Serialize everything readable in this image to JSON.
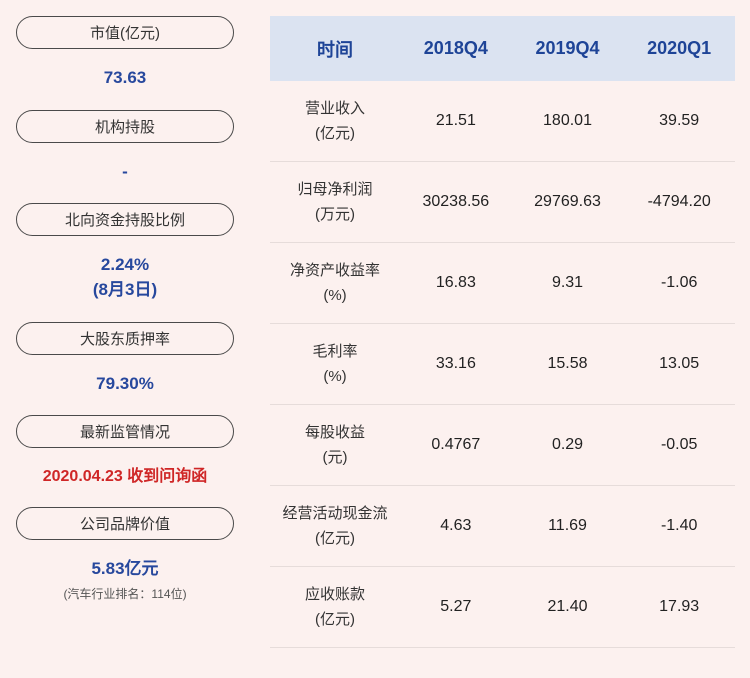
{
  "theme": {
    "background": "#fcf1ef",
    "header_bg": "#dbe3f1",
    "header_text_blue": "#1e4497",
    "value_blue": "#27489d",
    "alert_red": "#cf2626",
    "pill_border": "#4a4a4a"
  },
  "sidebar": {
    "items": [
      {
        "label": "市值(亿元)",
        "value": "73.63"
      },
      {
        "label": "机构持股",
        "value": "-"
      },
      {
        "label": "北向资金持股比例",
        "value": "2.24%",
        "value_line2": "(8月3日)"
      },
      {
        "label": "大股东质押率",
        "value": "79.30%"
      },
      {
        "label": "最新监管情况",
        "value": "2020.04.23 收到问询函"
      },
      {
        "label": "公司品牌价值",
        "value": "5.83亿元",
        "note": "(汽车行业排名：114位)"
      }
    ]
  },
  "table": {
    "header": [
      "时间",
      "2018Q4",
      "2019Q4",
      "2020Q1"
    ],
    "rows": [
      {
        "label": "营业收入",
        "unit": "(亿元)",
        "values": [
          "21.51",
          "180.01",
          "39.59"
        ]
      },
      {
        "label": "归母净利润",
        "unit": "(万元)",
        "values": [
          "30238.56",
          "29769.63",
          "-4794.20"
        ]
      },
      {
        "label": "净资产收益率",
        "unit": "(%)",
        "values": [
          "16.83",
          "9.31",
          "-1.06"
        ]
      },
      {
        "label": "毛利率",
        "unit": "(%)",
        "values": [
          "33.16",
          "15.58",
          "13.05"
        ]
      },
      {
        "label": "每股收益",
        "unit": "(元)",
        "values": [
          "0.4767",
          "0.29",
          "-0.05"
        ]
      },
      {
        "label": "经营活动现金流",
        "unit": "(亿元)",
        "values": [
          "4.63",
          "11.69",
          "-1.40"
        ]
      },
      {
        "label": "应收账款",
        "unit": "(亿元)",
        "values": [
          "5.27",
          "21.40",
          "17.93"
        ]
      }
    ]
  }
}
